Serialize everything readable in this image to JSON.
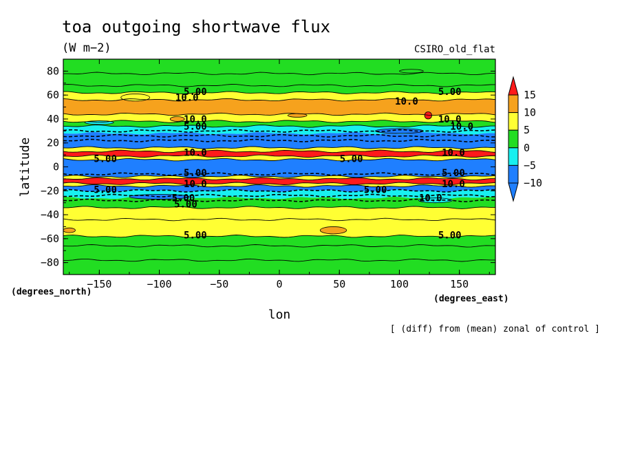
{
  "chart_data": {
    "type": "heatmap",
    "title": "toa outgoing shortwave flux",
    "units": "(W m−2)",
    "model": "CSIRO_old_flat",
    "xlabel": "lon",
    "ylabel": "latitude",
    "x_units": "(degrees_east)",
    "y_units": "(degrees_north)",
    "note": "[ (diff) from (mean) zonal of control ]",
    "xlim": [
      -180,
      180
    ],
    "ylim": [
      -90,
      90
    ],
    "x_ticks": [
      -150,
      -100,
      -50,
      0,
      50,
      100,
      150
    ],
    "x_tick_labels": [
      "−150",
      "−100",
      "−50",
      "0",
      "50",
      "100",
      "150"
    ],
    "y_ticks": [
      80,
      60,
      40,
      20,
      0,
      -20,
      -40,
      -60,
      -80
    ],
    "y_tick_labels": [
      "80",
      "60",
      "40",
      "20",
      "0",
      "−20",
      "−40",
      "−60",
      "−80"
    ],
    "colorbar": {
      "levels": [
        15,
        10,
        5,
        0,
        -5,
        -10
      ],
      "level_labels": [
        "15",
        "10",
        "5",
        "0",
        "−5",
        "−10"
      ],
      "colors": [
        "#ff1a1a",
        "#f6a21d",
        "#ffff33",
        "#22dd22",
        "#18f0f0",
        "#1f7fff"
      ],
      "top_color": "#ff1a1a",
      "bottom_color": "#1f7fff"
    },
    "zonal_bands": [
      {
        "lat_max": 90,
        "lat_min": 68,
        "value": 2,
        "color": "#22dd22"
      },
      {
        "lat_max": 68,
        "lat_min": 62,
        "value": 3,
        "color": "#22dd22"
      },
      {
        "lat_max": 62,
        "lat_min": 56,
        "value": 7,
        "color": "#ffff33"
      },
      {
        "lat_max": 56,
        "lat_min": 44,
        "value": 11,
        "color": "#f6a21d"
      },
      {
        "lat_max": 44,
        "lat_min": 38,
        "value": 7,
        "color": "#ffff33"
      },
      {
        "lat_max": 38,
        "lat_min": 34,
        "value": 3,
        "color": "#22dd22"
      },
      {
        "lat_max": 34,
        "lat_min": 28,
        "value": -3,
        "color": "#18f0f0"
      },
      {
        "lat_max": 28,
        "lat_min": 16,
        "value": -12,
        "color": "#1f7fff"
      },
      {
        "lat_max": 16,
        "lat_min": 13,
        "value": 8,
        "color": "#ffff33"
      },
      {
        "lat_max": 13,
        "lat_min": 9,
        "value": 18,
        "color": "#ff1a1a"
      },
      {
        "lat_max": 9,
        "lat_min": 6,
        "value": 8,
        "color": "#ffff33"
      },
      {
        "lat_max": 6,
        "lat_min": -8,
        "value": -12,
        "color": "#1f7fff"
      },
      {
        "lat_max": -8,
        "lat_min": -10,
        "value": 8,
        "color": "#ffff33"
      },
      {
        "lat_max": -10,
        "lat_min": -14,
        "value": 18,
        "color": "#ff1a1a"
      },
      {
        "lat_max": -14,
        "lat_min": -16,
        "value": 8,
        "color": "#ffff33"
      },
      {
        "lat_max": -16,
        "lat_min": -20,
        "value": -12,
        "color": "#1f7fff"
      },
      {
        "lat_max": -20,
        "lat_min": -26,
        "value": -3,
        "color": "#18f0f0"
      },
      {
        "lat_max": -26,
        "lat_min": -34,
        "value": 2,
        "color": "#22dd22"
      },
      {
        "lat_max": -34,
        "lat_min": -44,
        "value": 7,
        "color": "#ffff33"
      },
      {
        "lat_max": -44,
        "lat_min": -58,
        "value": 7,
        "color": "#ffff33"
      },
      {
        "lat_max": -58,
        "lat_min": -66,
        "value": 3,
        "color": "#22dd22"
      },
      {
        "lat_max": -66,
        "lat_min": -90,
        "value": 2,
        "color": "#22dd22"
      }
    ],
    "patches": [
      {
        "lon": -120,
        "lat": 58,
        "rlon": 12,
        "rlat": 3,
        "color": "#ffff33"
      },
      {
        "lon": -85,
        "lat": 40,
        "rlon": 6,
        "rlat": 2,
        "color": "#f6a21d"
      },
      {
        "lon": 15,
        "lat": 43,
        "rlon": 8,
        "rlat": 1.5,
        "color": "#f6a21d"
      },
      {
        "lon": 124,
        "lat": 43,
        "rlon": 3,
        "rlat": 3,
        "color": "#ff1a1a"
      },
      {
        "lon": 100,
        "lat": 30,
        "rlon": 20,
        "rlat": 2,
        "color": "#1f7fff"
      },
      {
        "lon": -150,
        "lat": 37,
        "rlon": 12,
        "rlat": 1.5,
        "color": "#18f0f0"
      },
      {
        "lon": -100,
        "lat": -25,
        "rlon": 25,
        "rlat": 2,
        "color": "#1f7fff"
      },
      {
        "lon": 130,
        "lat": -28,
        "rlon": 14,
        "rlat": 2,
        "color": "#18f0f0"
      },
      {
        "lon": 45,
        "lat": -53,
        "rlon": 11,
        "rlat": 3,
        "color": "#f6a21d"
      },
      {
        "lon": -175,
        "lat": -53,
        "rlon": 5,
        "rlat": 2,
        "color": "#f6a21d"
      },
      {
        "lon": 110,
        "lat": 80,
        "rlon": 10,
        "rlat": 1.5,
        "color": "#22dd22"
      }
    ],
    "contour_lines": [
      {
        "lat": 68,
        "dashed": false
      },
      {
        "lat": 62,
        "dashed": false
      },
      {
        "lat": 56,
        "dashed": false
      },
      {
        "lat": 44,
        "dashed": false
      },
      {
        "lat": 38,
        "dashed": false
      },
      {
        "lat": 34,
        "dashed": false
      },
      {
        "lat": 30,
        "dashed": true
      },
      {
        "lat": 26,
        "dashed": true
      },
      {
        "lat": 22,
        "dashed": true
      },
      {
        "lat": 16,
        "dashed": false
      },
      {
        "lat": 13,
        "dashed": false
      },
      {
        "lat": 9,
        "dashed": false
      },
      {
        "lat": 6,
        "dashed": false
      },
      {
        "lat": -6,
        "dashed": true
      },
      {
        "lat": -8,
        "dashed": false
      },
      {
        "lat": -10,
        "dashed": false
      },
      {
        "lat": -14,
        "dashed": false
      },
      {
        "lat": -16,
        "dashed": false
      },
      {
        "lat": -20,
        "dashed": true
      },
      {
        "lat": -24,
        "dashed": true
      },
      {
        "lat": -28,
        "dashed": true
      },
      {
        "lat": -34,
        "dashed": false
      },
      {
        "lat": -44,
        "dashed": false
      },
      {
        "lat": -58,
        "dashed": false
      },
      {
        "lat": -66,
        "dashed": false
      },
      {
        "lat": -78,
        "dashed": false
      },
      {
        "lat": 78,
        "dashed": false
      }
    ],
    "contour_labels": [
      {
        "lon": -70,
        "lat": 63,
        "text": "5.00"
      },
      {
        "lon": 142,
        "lat": 63,
        "text": "5.00"
      },
      {
        "lon": -77,
        "lat": 58,
        "text": "10.0"
      },
      {
        "lon": 106,
        "lat": 55,
        "text": "10.0"
      },
      {
        "lon": -70,
        "lat": 40,
        "text": "10.0"
      },
      {
        "lon": 142,
        "lat": 40,
        "text": "10.0"
      },
      {
        "lon": -70,
        "lat": 34,
        "text": "5.00"
      },
      {
        "lon": 152,
        "lat": 34,
        "text": "10.0"
      },
      {
        "lon": -70,
        "lat": 12,
        "text": "10.0"
      },
      {
        "lon": 145,
        "lat": 12,
        "text": "10.0"
      },
      {
        "lon": -145,
        "lat": 7,
        "text": "5.00"
      },
      {
        "lon": 60,
        "lat": 7,
        "text": "5.00"
      },
      {
        "lon": -70,
        "lat": -5,
        "text": "5.00"
      },
      {
        "lon": 145,
        "lat": -5,
        "text": "5.00"
      },
      {
        "lon": -70,
        "lat": -14,
        "text": "10.0"
      },
      {
        "lon": 145,
        "lat": -14,
        "text": "10.0"
      },
      {
        "lon": -145,
        "lat": -19,
        "text": "5.00"
      },
      {
        "lon": 80,
        "lat": -19,
        "text": "5.00"
      },
      {
        "lon": -80,
        "lat": -26,
        "text": "5.00"
      },
      {
        "lon": 126,
        "lat": -26,
        "text": "10.0"
      },
      {
        "lon": -78,
        "lat": -31,
        "text": "5.00"
      },
      {
        "lon": -70,
        "lat": -57,
        "text": "5.00"
      },
      {
        "lon": 142,
        "lat": -57,
        "text": "5.00"
      }
    ]
  }
}
